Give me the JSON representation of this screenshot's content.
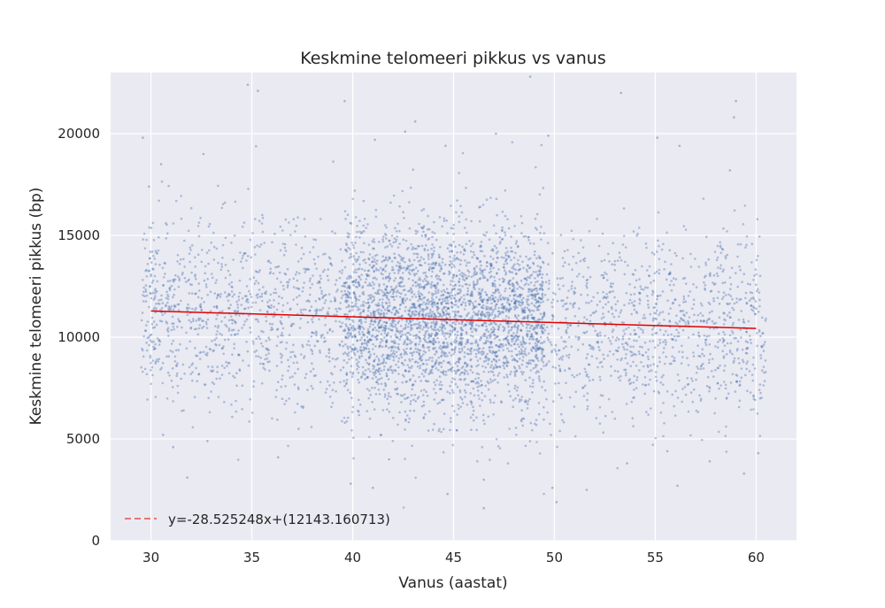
{
  "chart_data": {
    "type": "scatter",
    "title": "Keskmine telomeeri pikkus vs vanus",
    "xlabel": "Vanus (aastat)",
    "ylabel": "Keskmine telomeeri pikkus (bp)",
    "xlim": [
      28,
      62
    ],
    "ylim": [
      0,
      23000
    ],
    "x_ticks": [
      30,
      35,
      40,
      45,
      50,
      55,
      60
    ],
    "y_ticks": [
      0,
      5000,
      10000,
      15000,
      20000
    ],
    "grid": true,
    "legend_position": "bottom-left",
    "colors": {
      "points": "#4c72b0",
      "fit": "#e00000",
      "background": "#eaeaf2"
    },
    "sample_points": [
      [
        29.6,
        19800
      ],
      [
        29.9,
        17400
      ],
      [
        30.5,
        18500
      ],
      [
        32.6,
        19000
      ],
      [
        34.8,
        22400
      ],
      [
        35.3,
        22100
      ],
      [
        39.6,
        21600
      ],
      [
        41.1,
        19700
      ],
      [
        42.6,
        20100
      ],
      [
        43.1,
        20600
      ],
      [
        44.6,
        19400
      ],
      [
        47.1,
        20000
      ],
      [
        48.8,
        22800
      ],
      [
        49.7,
        19900
      ],
      [
        53.3,
        22000
      ],
      [
        55.1,
        19800
      ],
      [
        56.2,
        19400
      ],
      [
        58.9,
        20800
      ],
      [
        59.0,
        21600
      ],
      [
        58.7,
        18200
      ],
      [
        30.6,
        5200
      ],
      [
        31.1,
        4600
      ],
      [
        31.8,
        3100
      ],
      [
        32.8,
        4900
      ],
      [
        36.3,
        4100
      ],
      [
        39.9,
        2800
      ],
      [
        41.0,
        2600
      ],
      [
        41.8,
        4000
      ],
      [
        44.7,
        2300
      ],
      [
        46.5,
        1600
      ],
      [
        46.5,
        3000
      ],
      [
        49.9,
        2600
      ],
      [
        50.1,
        1900
      ],
      [
        51.6,
        2500
      ],
      [
        53.6,
        3800
      ],
      [
        55.6,
        4400
      ],
      [
        56.1,
        2700
      ],
      [
        57.7,
        3900
      ],
      [
        59.4,
        3300
      ],
      [
        60.1,
        4300
      ]
    ],
    "generated_cloud": {
      "count": 5200,
      "x_range": [
        29.5,
        60.5
      ],
      "mean_y_formula": "-28.525248*x + 12143.160713",
      "y_std": 2300,
      "dense_x_range": [
        39.6,
        49.5
      ]
    },
    "fit_line": {
      "slope": -28.525248,
      "intercept": 12143.160713,
      "x_range": [
        30,
        60
      ]
    },
    "legend": [
      {
        "label": "y=-28.525248x+(12143.160713)",
        "style": "dashed",
        "color": "#e00000"
      }
    ]
  }
}
